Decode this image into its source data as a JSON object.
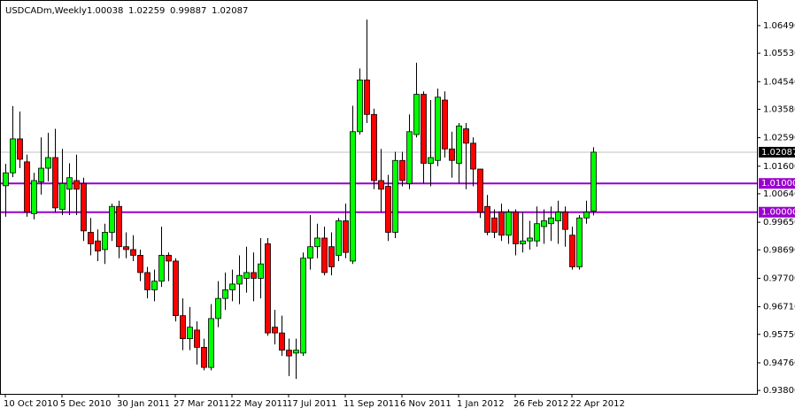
{
  "chart_data": {
    "type": "candlestick",
    "title": "USDCADm,Weekly",
    "categories": [
      "10 Oct 2010",
      null,
      null,
      null,
      null,
      null,
      null,
      null,
      "5 Dec 2010",
      null,
      null,
      null,
      null,
      null,
      null,
      null,
      "30 Jan 2011",
      null,
      null,
      null,
      null,
      null,
      null,
      null,
      "27 Mar 2011",
      null,
      null,
      null,
      null,
      null,
      null,
      null,
      "22 May 2011",
      null,
      null,
      null,
      null,
      null,
      null,
      null,
      "17 Jul 2011",
      null,
      null,
      null,
      null,
      null,
      null,
      null,
      "11 Sep 2011",
      null,
      null,
      null,
      null,
      null,
      null,
      null,
      "6 Nov 2011",
      null,
      null,
      null,
      null,
      null,
      null,
      null,
      "1 Jan 2012",
      null,
      null,
      null,
      null,
      null,
      null,
      null,
      "26 Feb 2012",
      null,
      null,
      null,
      null,
      null,
      null,
      null,
      "22 Apr 2012",
      null,
      null,
      null
    ],
    "open": [
      1.0092,
      1.0137,
      1.0255,
      1.0175,
      0.9995,
      1.0105,
      1.0153,
      1.019,
      1.001,
      1.008,
      1.011,
      1.01,
      0.993,
      0.99,
      0.987,
      0.993,
      1.002,
      0.988,
      0.987,
      0.985,
      0.979,
      0.973,
      0.976,
      0.985,
      0.983,
      0.964,
      0.956,
      0.959,
      0.953,
      0.946,
      0.963,
      0.97,
      0.973,
      0.975,
      0.977,
      0.979,
      0.977,
      0.989,
      0.96,
      0.958,
      0.952,
      0.951,
      0.951,
      0.984,
      0.988,
      0.991,
      0.988,
      0.985,
      0.997,
      0.983,
      1.028,
      1.046,
      1.034,
      1.011,
      1.009,
      0.993,
      1.018,
      1.01,
      1.027,
      1.041,
      1.017,
      1.018,
      1.039,
      1.022,
      1.017,
      1.029,
      1.024,
      1.015,
      1.002,
      0.998,
      1.0,
      0.992,
      1.0,
      0.989,
      0.99,
      0.99,
      0.995,
      0.996,
      0.997,
      1.0,
      0.992,
      0.981,
      0.998,
      1.00038
    ],
    "high": [
      1.0168,
      1.0369,
      1.035,
      1.02,
      1.0137,
      1.026,
      1.0276,
      1.029,
      1.022,
      1.017,
      1.02,
      1.012,
      0.998,
      0.994,
      0.996,
      1.003,
      1.004,
      0.993,
      0.992,
      0.987,
      0.981,
      0.98,
      0.995,
      0.986,
      0.984,
      0.97,
      0.967,
      0.962,
      0.956,
      0.968,
      0.976,
      0.979,
      0.98,
      0.985,
      0.988,
      0.986,
      0.991,
      0.991,
      0.966,
      0.964,
      0.956,
      0.956,
      0.986,
      0.999,
      0.996,
      0.995,
      0.993,
      0.998,
      1.003,
      1.037,
      1.05,
      1.067,
      1.036,
      1.022,
      1.013,
      1.021,
      1.021,
      1.034,
      1.052,
      1.042,
      1.039,
      1.043,
      1.042,
      1.028,
      1.031,
      1.031,
      1.026,
      1.015,
      1.006,
      1.001,
      1.003,
      1.001,
      1.001,
      1.0,
      0.997,
      1.002,
      1.001,
      1.002,
      1.004,
      1.002,
      0.995,
      0.999,
      1.004,
      1.02259
    ],
    "low": [
      0.9984,
      1.0122,
      1.0153,
      0.9984,
      0.9975,
      1.0061,
      1.0107,
      1.0,
      0.999,
      0.999,
      0.999,
      0.99,
      0.985,
      0.983,
      0.982,
      0.99,
      0.984,
      0.984,
      0.983,
      0.976,
      0.97,
      0.969,
      0.974,
      0.976,
      0.962,
      0.952,
      0.952,
      0.947,
      0.945,
      0.945,
      0.96,
      0.966,
      0.969,
      0.968,
      0.972,
      0.969,
      0.97,
      0.957,
      0.954,
      0.95,
      0.943,
      0.942,
      0.95,
      0.98,
      0.984,
      0.978,
      0.978,
      0.983,
      0.984,
      0.982,
      1.027,
      1.031,
      1.008,
      1.0,
      0.99,
      0.991,
      1.009,
      1.008,
      1.026,
      1.01,
      1.009,
      1.016,
      1.019,
      1.012,
      1.01,
      1.008,
      1.009,
      0.998,
      0.992,
      0.991,
      0.99,
      0.989,
      0.985,
      0.986,
      0.987,
      0.988,
      0.989,
      0.99,
      0.989,
      0.988,
      0.98,
      0.98,
      0.996,
      0.99887
    ],
    "close": [
      1.0137,
      1.0255,
      1.0184,
      1.0,
      1.011,
      1.0153,
      1.019,
      1.0015,
      1.01,
      1.012,
      1.008,
      0.9935,
      0.989,
      0.9865,
      0.993,
      1.002,
      0.988,
      0.987,
      0.985,
      0.979,
      0.973,
      0.976,
      0.985,
      0.983,
      0.964,
      0.956,
      0.96,
      0.953,
      0.946,
      0.963,
      0.97,
      0.973,
      0.975,
      0.978,
      0.979,
      0.977,
      0.982,
      0.958,
      0.958,
      0.952,
      0.95,
      0.952,
      0.984,
      0.988,
      0.991,
      0.979,
      0.981,
      0.997,
      0.986,
      1.028,
      1.046,
      1.034,
      1.011,
      1.008,
      0.993,
      1.018,
      1.011,
      1.028,
      1.041,
      1.017,
      1.019,
      1.04,
      1.022,
      1.018,
      1.03,
      1.024,
      1.015,
      1.0,
      0.993,
      0.993,
      0.992,
      1.0,
      0.989,
      0.99,
      0.991,
      0.996,
      0.997,
      0.998,
      1.0,
      0.994,
      0.981,
      0.998,
      1.0,
      1.02087
    ],
    "up_color": "#00ff00",
    "down_color": "#ff0000",
    "ylim": [
      0.9368,
      1.0735
    ],
    "yticks": [
      {
        "value": 1.0649,
        "label": "1.06490"
      },
      {
        "value": 1.0553,
        "label": "1.05530"
      },
      {
        "value": 1.0454,
        "label": "1.04540"
      },
      {
        "value": 1.0358,
        "label": "1.03580"
      },
      {
        "value": 1.0259,
        "label": "1.02590"
      },
      {
        "value": 1.016,
        "label": "1.01600"
      },
      {
        "value": 1.0064,
        "label": "1.00640"
      },
      {
        "value": 0.9965,
        "label": "0.99650"
      },
      {
        "value": 0.9869,
        "label": "0.98690"
      },
      {
        "value": 0.977,
        "label": "0.97700"
      },
      {
        "value": 0.9671,
        "label": "0.96710"
      },
      {
        "value": 0.9575,
        "label": "0.95750"
      },
      {
        "value": 0.9476,
        "label": "0.94760"
      },
      {
        "value": 0.938,
        "label": "0.93800"
      }
    ],
    "hlines": [
      {
        "value": 1.01,
        "label": "1.01000",
        "color": "#9900cc"
      },
      {
        "value": 1.0,
        "label": "1.00000",
        "color": "#9900cc"
      }
    ]
  }
}
